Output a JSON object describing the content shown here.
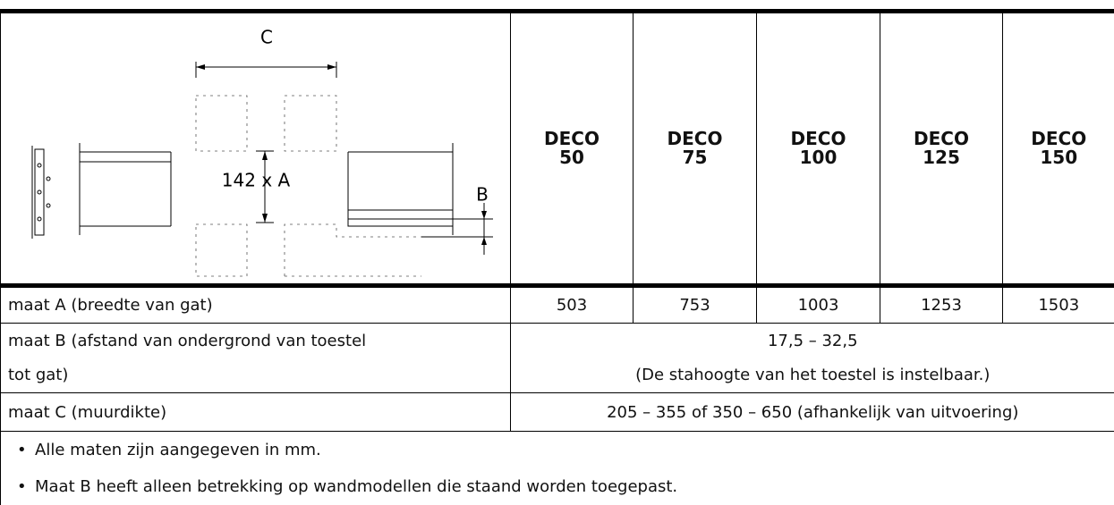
{
  "diagram": {
    "labels": [
      "C",
      "142 x A",
      "B"
    ]
  },
  "table": {
    "columns": [
      [
        "DECO",
        "50"
      ],
      [
        "DECO",
        "75"
      ],
      [
        "DECO",
        "100"
      ],
      [
        "DECO",
        "125"
      ],
      [
        "DECO",
        "150"
      ]
    ],
    "rows": [
      {
        "label": "maat A (breedte van gat)",
        "values": [
          "503",
          "753",
          "1003",
          "1253",
          "1503"
        ]
      },
      {
        "label_lines": [
          "maat B (afstand van ondergrond van toestel",
          "tot gat)"
        ],
        "value_lines": [
          "17,5 – 32,5",
          "(De stahoogte van het toestel is instelbaar.)"
        ]
      },
      {
        "label": "maat C (muurdikte)",
        "value": "205 – 355 of 350 – 650 (afhankelijk van uitvoering)"
      }
    ],
    "notes": [
      "Alle maten zijn aangegeven in mm.",
      "Maat B heeft alleen betrekking op wandmodellen die staand worden toegepast."
    ]
  }
}
